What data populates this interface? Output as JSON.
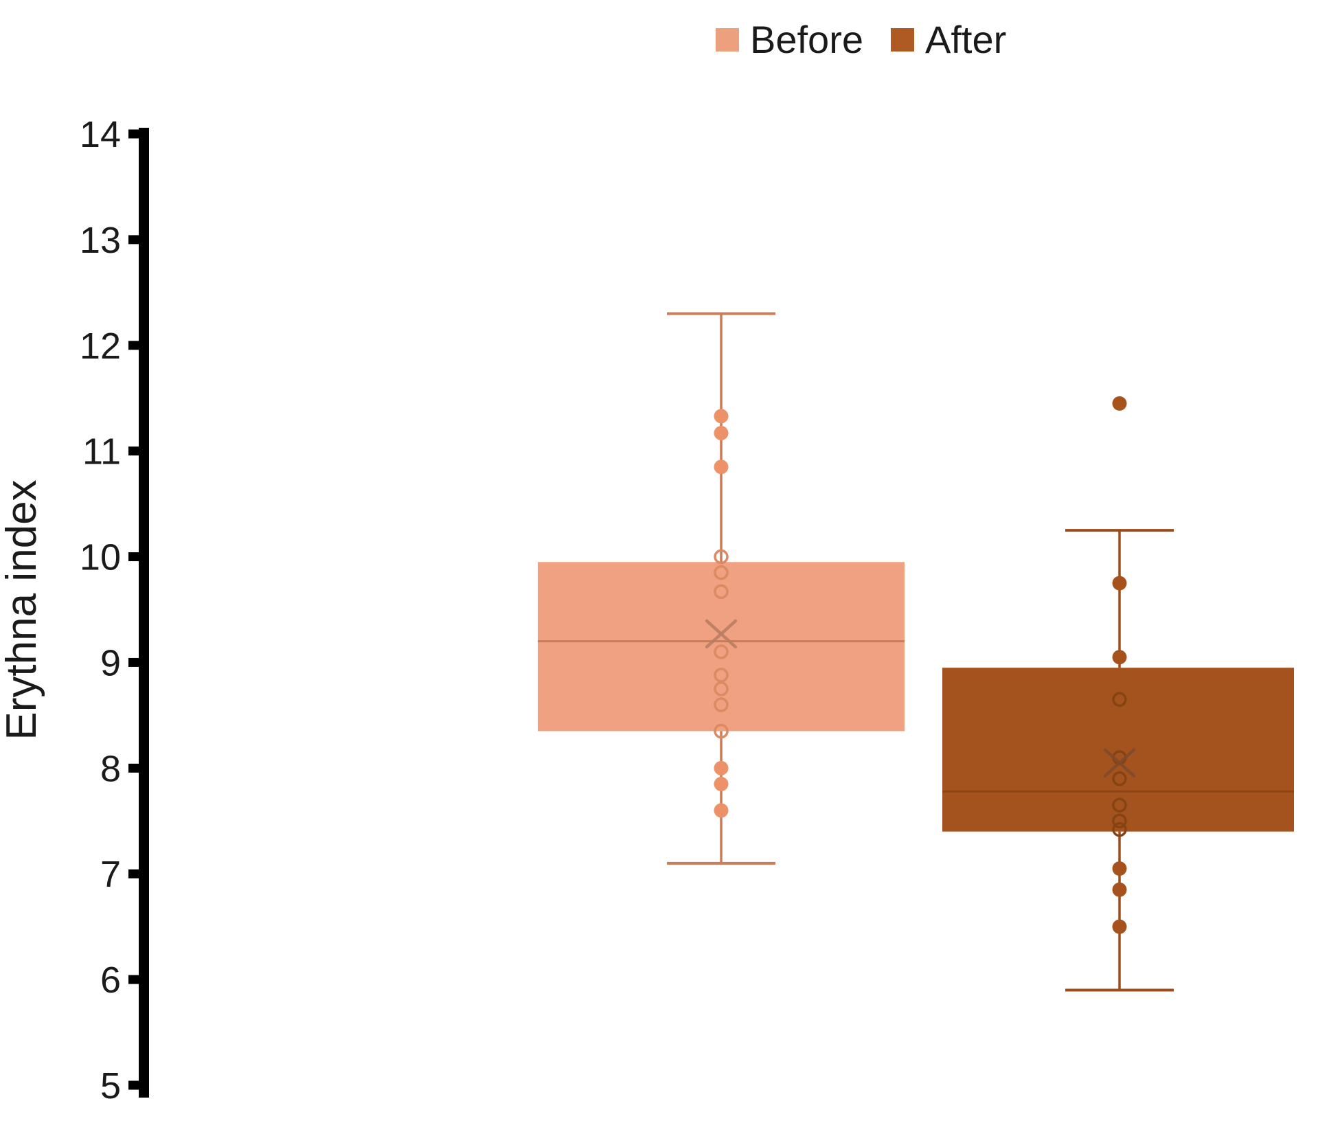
{
  "page": {
    "background": "#ffffff"
  },
  "legend": {
    "items": [
      {
        "label": "Before",
        "color": "#EDA07E"
      },
      {
        "label": "After",
        "color": "#AF5A23"
      }
    ]
  },
  "chart_data": {
    "type": "boxplot",
    "title": "",
    "xlabel": "",
    "ylabel": "Erythna index",
    "ylim": [
      5,
      14
    ],
    "yticks": [
      14,
      13,
      12,
      11,
      10,
      9,
      8,
      7,
      6,
      5
    ],
    "grid": false,
    "legend_position": "top-center",
    "axis_color": "#000000",
    "series": [
      {
        "name": "Before",
        "whisker_low": 7.1,
        "q1": 8.35,
        "median": 9.2,
        "mean": 9.27,
        "q3": 9.95,
        "whisker_high": 12.3,
        "points": [
          {
            "value": 11.33,
            "style": "filled"
          },
          {
            "value": 11.17,
            "style": "filled"
          },
          {
            "value": 10.85,
            "style": "filled"
          },
          {
            "value": 10.0,
            "style": "open"
          },
          {
            "value": 9.85,
            "style": "open"
          },
          {
            "value": 9.67,
            "style": "open"
          },
          {
            "value": 9.1,
            "style": "open"
          },
          {
            "value": 8.88,
            "style": "open"
          },
          {
            "value": 8.75,
            "style": "open"
          },
          {
            "value": 8.6,
            "style": "open"
          },
          {
            "value": 8.35,
            "style": "open"
          },
          {
            "value": 8.0,
            "style": "filled"
          },
          {
            "value": 7.85,
            "style": "filled"
          },
          {
            "value": 7.6,
            "style": "filled"
          }
        ],
        "colors": {
          "fill": "#F0A181",
          "line": "#CC7D57",
          "median": "#C87C59",
          "mean": "#B87D62",
          "point_fill": "#ED9268",
          "point_stroke": "#DB8A61"
        }
      },
      {
        "name": "After",
        "whisker_low": 5.9,
        "q1": 7.4,
        "median": 7.78,
        "mean": 8.05,
        "q3": 8.95,
        "whisker_high": 10.25,
        "points": [
          {
            "value": 11.45,
            "style": "filled"
          },
          {
            "value": 9.75,
            "style": "filled"
          },
          {
            "value": 9.05,
            "style": "filled"
          },
          {
            "value": 8.65,
            "style": "open"
          },
          {
            "value": 8.1,
            "style": "open"
          },
          {
            "value": 7.9,
            "style": "open"
          },
          {
            "value": 7.65,
            "style": "open"
          },
          {
            "value": 7.5,
            "style": "open"
          },
          {
            "value": 7.42,
            "style": "open"
          },
          {
            "value": 7.05,
            "style": "filled"
          },
          {
            "value": 6.85,
            "style": "filled"
          },
          {
            "value": 6.5,
            "style": "filled"
          }
        ],
        "colors": {
          "fill": "#A5531E",
          "line": "#9A4D1B",
          "median": "#8C4514",
          "mean": "#7E4B2C",
          "point_fill": "#A5521D",
          "point_stroke": "#864312"
        }
      }
    ]
  }
}
